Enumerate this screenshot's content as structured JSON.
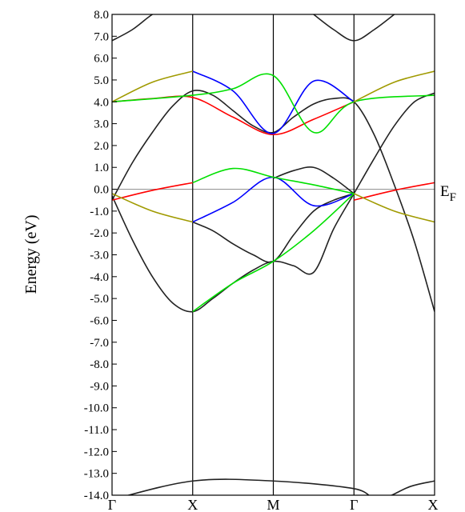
{
  "chart_data": {
    "type": "line",
    "title": "",
    "ylabel": "Energy (eV)",
    "ylim": [
      -14.0,
      8.0
    ],
    "yticks": [
      "8.0",
      "7.0",
      "6.0",
      "5.0",
      "4.0",
      "3.0",
      "2.0",
      "1.0",
      "0.0",
      "-1.0",
      "-2.0",
      "-3.0",
      "-4.0",
      "-5.0",
      "-6.0",
      "-7.0",
      "-8.0",
      "-9.0",
      "-10.0",
      "-11.0",
      "-12.0",
      "-13.0",
      "-14.0"
    ],
    "kpoints": [
      {
        "label": "Γ",
        "x": 0
      },
      {
        "label": "X",
        "x": 1
      },
      {
        "label": "M",
        "x": 2
      },
      {
        "label": "Γ",
        "x": 3
      },
      {
        "label": "X",
        "x": 4
      }
    ],
    "fermi_level": {
      "label": "E",
      "subscript": "F",
      "value": 0.0
    },
    "colors": {
      "black": "#222222",
      "red": "#ff0000",
      "blue": "#0000ff",
      "green": "#00e000",
      "olive": "#a09a00",
      "fermi": "#999999"
    },
    "series": [
      {
        "color": "black",
        "x": [
          0,
          0.25,
          0.5,
          0.75,
          1.0
        ],
        "y": [
          6.8,
          7.3,
          8.0,
          8.5,
          9.0
        ]
      },
      {
        "color": "black",
        "x": [
          2.5,
          2.75,
          3.0,
          3.25,
          3.5
        ],
        "y": [
          8.0,
          7.3,
          6.8,
          7.3,
          8.0
        ]
      },
      {
        "color": "black",
        "x": [
          0,
          0.25,
          0.5,
          0.75,
          1.0,
          1.25,
          1.5,
          1.75,
          2.0,
          2.25,
          2.5,
          2.75,
          3.0,
          3.25,
          3.5,
          3.75,
          4.0
        ],
        "y": [
          -0.5,
          1.2,
          2.6,
          3.8,
          4.5,
          4.3,
          3.6,
          2.9,
          2.6,
          3.3,
          3.9,
          4.15,
          4.0,
          2.5,
          0.2,
          -2.4,
          -5.6
        ]
      },
      {
        "color": "black",
        "x": [
          0,
          0.25,
          0.5,
          0.75,
          1.0,
          1.25,
          1.5,
          1.75,
          2.0,
          2.25,
          2.5,
          2.75,
          3.0,
          3.25,
          3.5,
          3.75,
          4.0
        ],
        "y": [
          -0.3,
          -2.3,
          -4.0,
          -5.2,
          -5.6,
          -5.0,
          -4.3,
          -3.7,
          -3.3,
          -3.5,
          -3.8,
          -1.8,
          -0.2,
          1.4,
          2.9,
          4.0,
          4.4
        ]
      },
      {
        "color": "black",
        "x": [
          1.0,
          1.25,
          1.5,
          1.75,
          2.0,
          2.25,
          2.5,
          2.75,
          3.0
        ],
        "y": [
          -1.5,
          -1.9,
          -2.5,
          -3.0,
          -3.3,
          -2.1,
          -1.0,
          -0.5,
          -0.2
        ]
      },
      {
        "color": "black",
        "x": [
          2.0,
          2.25,
          2.5,
          2.75,
          3.0
        ],
        "y": [
          0.5,
          0.85,
          1.0,
          0.5,
          -0.2
        ]
      },
      {
        "color": "black",
        "x": [
          0.0,
          1.0,
          2.0,
          3.0,
          3.3,
          3.7,
          4.0
        ],
        "y": [
          -14.2,
          -13.35,
          -13.35,
          -13.7,
          -14.2,
          -13.6,
          -13.35
        ]
      },
      {
        "color": "red",
        "x": [
          0,
          0.5,
          1.0
        ],
        "y": [
          -0.5,
          -0.05,
          0.3
        ]
      },
      {
        "color": "red",
        "x": [
          3.0,
          3.5,
          4.0
        ],
        "y": [
          -0.5,
          -0.05,
          0.3
        ]
      },
      {
        "color": "red",
        "x": [
          0,
          0.5,
          1.0,
          1.5,
          2.0,
          2.5,
          3.0
        ],
        "y": [
          4.0,
          4.15,
          4.2,
          3.3,
          2.5,
          3.2,
          4.0
        ]
      },
      {
        "color": "blue",
        "x": [
          1.0,
          1.5,
          2.0,
          2.5,
          3.0
        ],
        "y": [
          -1.5,
          -0.6,
          0.55,
          -0.75,
          -0.2
        ]
      },
      {
        "color": "blue",
        "x": [
          1.0,
          1.5,
          2.0,
          2.5,
          3.0
        ],
        "y": [
          5.4,
          4.5,
          2.55,
          4.95,
          4.0
        ]
      },
      {
        "color": "green",
        "x": [
          1.0,
          1.5,
          2.0,
          2.5,
          3.0
        ],
        "y": [
          0.3,
          0.95,
          0.55,
          0.2,
          -0.2
        ]
      },
      {
        "color": "green",
        "x": [
          1.0,
          1.5,
          2.0,
          2.5,
          3.0
        ],
        "y": [
          -5.6,
          -4.3,
          -3.3,
          -1.9,
          -0.2
        ]
      },
      {
        "color": "green",
        "x": [
          0,
          1.0,
          1.5,
          2.0,
          2.5,
          3.0,
          4.0
        ],
        "y": [
          4.0,
          4.3,
          4.6,
          5.2,
          2.6,
          4.0,
          4.3
        ]
      },
      {
        "color": "olive",
        "x": [
          0,
          0.5,
          1.0
        ],
        "y": [
          4.0,
          4.9,
          5.4
        ]
      },
      {
        "color": "olive",
        "x": [
          3.0,
          3.5,
          4.0
        ],
        "y": [
          4.0,
          4.9,
          5.4
        ]
      },
      {
        "color": "olive",
        "x": [
          0,
          0.5,
          1.0
        ],
        "y": [
          -0.2,
          -1.0,
          -1.5
        ]
      },
      {
        "color": "olive",
        "x": [
          3.0,
          3.5,
          4.0
        ],
        "y": [
          -0.2,
          -1.0,
          -1.5
        ]
      }
    ]
  }
}
